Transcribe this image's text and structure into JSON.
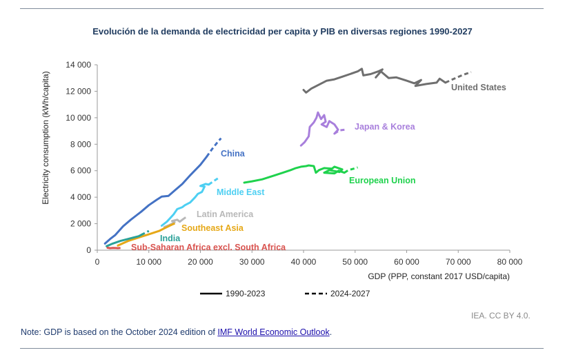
{
  "title": "Evolución de la demanda de electricidad per capita y PIB en diversas regiones 1990-2027",
  "credit": "IEA. CC BY 4.0.",
  "note": {
    "prefix": "Note: GDP is based on the October 2024 edition of ",
    "link": "IMF World Economic Outlook",
    "suffix": "."
  },
  "legend": {
    "solid": "1990-2023",
    "dashed": "2024-2027"
  },
  "chart_data": {
    "type": "line",
    "title": "Evolución de la demanda de electricidad per capita y PIB en diversas regiones 1990-2027",
    "xlabel": "GDP (PPP, constant 2017 USD/capita)",
    "ylabel": "Electricity consumption (kWh/capita)",
    "xlim": [
      0,
      80000
    ],
    "ylim": [
      0,
      14000
    ],
    "xticks": [
      0,
      10000,
      20000,
      30000,
      40000,
      50000,
      60000,
      70000,
      80000
    ],
    "yticks": [
      0,
      2000,
      4000,
      6000,
      8000,
      10000,
      12000,
      14000
    ],
    "xtick_labels": [
      "0",
      "10 000",
      "20 000",
      "30 000",
      "40 000",
      "50 000",
      "60 000",
      "70 000",
      "80 000"
    ],
    "ytick_labels": [
      "0",
      "2 000",
      "4 000",
      "6 000",
      "8 000",
      "10 000",
      "12 000",
      "14 000"
    ],
    "grid": false,
    "series": [
      {
        "name": "United States",
        "color": "#6f6f6f",
        "solid": [
          [
            40000,
            12100
          ],
          [
            40500,
            11900
          ],
          [
            41500,
            12200
          ],
          [
            43000,
            12500
          ],
          [
            44500,
            12800
          ],
          [
            46000,
            12900
          ],
          [
            47500,
            13100
          ],
          [
            49000,
            13300
          ],
          [
            50500,
            13500
          ],
          [
            51300,
            13700
          ],
          [
            51600,
            13200
          ],
          [
            53000,
            13300
          ],
          [
            54500,
            13500
          ],
          [
            55300,
            13650
          ],
          [
            54000,
            13050
          ],
          [
            55000,
            13500
          ],
          [
            56500,
            13000
          ],
          [
            58000,
            13050
          ],
          [
            60000,
            12800
          ],
          [
            61500,
            12600
          ],
          [
            62800,
            12850
          ],
          [
            61700,
            12400
          ],
          [
            63800,
            12550
          ],
          [
            65800,
            12650
          ],
          [
            66400,
            12950
          ],
          [
            67500,
            12650
          ]
        ],
        "dashed": [
          [
            67500,
            12650
          ],
          [
            69500,
            13000
          ],
          [
            71000,
            13250
          ],
          [
            72500,
            13450
          ]
        ]
      },
      {
        "name": "Japan & Korea",
        "color": "#a87fdc",
        "solid": [
          [
            39500,
            7900
          ],
          [
            40200,
            8150
          ],
          [
            41000,
            8600
          ],
          [
            41200,
            9300
          ],
          [
            42000,
            9650
          ],
          [
            42500,
            10000
          ],
          [
            42800,
            10400
          ],
          [
            43400,
            9900
          ],
          [
            44000,
            10200
          ],
          [
            44300,
            9700
          ],
          [
            43500,
            9500
          ],
          [
            44500,
            9300
          ],
          [
            45000,
            9750
          ],
          [
            46000,
            9500
          ],
          [
            46700,
            9100
          ],
          [
            46000,
            8800
          ]
        ],
        "dashed": [
          [
            46000,
            8800
          ],
          [
            47000,
            9050
          ],
          [
            48000,
            9100
          ]
        ]
      },
      {
        "name": "European Union",
        "color": "#1fd24d",
        "solid": [
          [
            28500,
            5100
          ],
          [
            30000,
            5200
          ],
          [
            32000,
            5350
          ],
          [
            34000,
            5600
          ],
          [
            36000,
            5850
          ],
          [
            37500,
            6050
          ],
          [
            38500,
            6200
          ],
          [
            39500,
            6300
          ],
          [
            40500,
            6350
          ],
          [
            41000,
            6400
          ],
          [
            42000,
            6350
          ],
          [
            42400,
            5850
          ],
          [
            43000,
            6050
          ],
          [
            44000,
            6200
          ],
          [
            45500,
            6150
          ],
          [
            46000,
            6300
          ],
          [
            47500,
            6100
          ],
          [
            47000,
            5900
          ],
          [
            45000,
            6050
          ],
          [
            44000,
            5850
          ],
          [
            46000,
            5800
          ],
          [
            46800,
            6000
          ],
          [
            47900,
            5850
          ]
        ],
        "dashed": [
          [
            47900,
            5850
          ],
          [
            48700,
            6050
          ],
          [
            49700,
            6150
          ],
          [
            50500,
            6250
          ]
        ]
      },
      {
        "name": "China",
        "color": "#4472c4",
        "solid": [
          [
            1500,
            500
          ],
          [
            2500,
            850
          ],
          [
            3500,
            1150
          ],
          [
            5000,
            1800
          ],
          [
            6500,
            2300
          ],
          [
            7500,
            2600
          ],
          [
            8500,
            2900
          ],
          [
            10000,
            3400
          ],
          [
            11500,
            3800
          ],
          [
            12500,
            4050
          ],
          [
            13800,
            4100
          ],
          [
            15000,
            4500
          ],
          [
            16500,
            5000
          ],
          [
            18000,
            5650
          ],
          [
            20000,
            6450
          ],
          [
            21200,
            7050
          ]
        ],
        "dashed": [
          [
            21200,
            7050
          ],
          [
            22200,
            7600
          ],
          [
            23300,
            8150
          ],
          [
            24000,
            8450
          ]
        ]
      },
      {
        "name": "Middle East",
        "color": "#4dcff2",
        "solid": [
          [
            12500,
            1850
          ],
          [
            13500,
            2150
          ],
          [
            14800,
            2700
          ],
          [
            15500,
            3100
          ],
          [
            16500,
            3250
          ],
          [
            17000,
            3400
          ],
          [
            18000,
            3600
          ],
          [
            19000,
            4000
          ],
          [
            19500,
            4250
          ],
          [
            20300,
            4400
          ],
          [
            20800,
            4800
          ],
          [
            20000,
            4850
          ],
          [
            21000,
            5000
          ],
          [
            21600,
            4950
          ]
        ],
        "dashed": [
          [
            21600,
            4950
          ],
          [
            22500,
            5200
          ],
          [
            23500,
            5450
          ]
        ]
      },
      {
        "name": "Latin America",
        "color": "#b8b8b8",
        "solid": [
          [
            13000,
            1750
          ],
          [
            14000,
            1900
          ],
          [
            15000,
            2100
          ],
          [
            14500,
            2200
          ],
          [
            15500,
            2300
          ],
          [
            16000,
            2150
          ],
          [
            16500,
            2300
          ]
        ],
        "dashed": [
          [
            16500,
            2300
          ],
          [
            17200,
            2500
          ]
        ]
      },
      {
        "name": "Southeast Asia",
        "color": "#e6a817",
        "solid": [
          [
            4000,
            350
          ],
          [
            6000,
            700
          ],
          [
            8000,
            950
          ],
          [
            10000,
            1200
          ],
          [
            12000,
            1450
          ],
          [
            13000,
            1650
          ],
          [
            14300,
            1900
          ]
        ],
        "dashed": [
          [
            14300,
            1900
          ],
          [
            15500,
            2100
          ]
        ]
      },
      {
        "name": "India",
        "color": "#2aa198",
        "solid": [
          [
            1800,
            300
          ],
          [
            3000,
            500
          ],
          [
            4500,
            700
          ],
          [
            6000,
            850
          ],
          [
            7000,
            950
          ],
          [
            8000,
            1050
          ],
          [
            8500,
            1150
          ]
        ],
        "dashed": [
          [
            8500,
            1150
          ],
          [
            9500,
            1350
          ],
          [
            10000,
            1450
          ]
        ]
      },
      {
        "name": "Sub-Saharan Africa excl. South Africa",
        "color": "#d9534f",
        "solid": [
          [
            2000,
            180
          ],
          [
            2500,
            150
          ],
          [
            3000,
            170
          ],
          [
            3500,
            160
          ],
          [
            4000,
            150
          ]
        ],
        "dashed": [
          [
            4000,
            150
          ],
          [
            4500,
            170
          ]
        ]
      }
    ]
  }
}
